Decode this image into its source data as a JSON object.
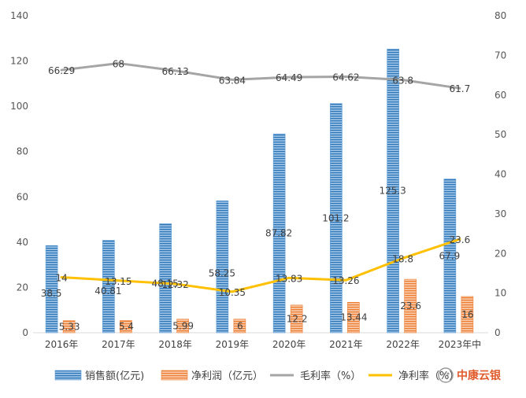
{
  "chart_data": {
    "type": "bar",
    "categories": [
      "2016年",
      "2017年",
      "2018年",
      "2019年",
      "2020年",
      "2021年",
      "2022年",
      "2023年中"
    ],
    "series": [
      {
        "name": "销售额(亿元)",
        "type": "bar",
        "axis": "left",
        "color": "#5b9bd5",
        "values": [
          38.5,
          40.81,
          48.15,
          58.25,
          87.82,
          101.2,
          125.3,
          67.9
        ],
        "labels": [
          "38.5",
          "40.81",
          "48.15",
          "58.25",
          "87.82",
          "101.2",
          "125.3",
          "67.9"
        ]
      },
      {
        "name": "净利润（亿元）",
        "type": "bar",
        "axis": "left",
        "color": "#ed7d31",
        "values": [
          5.33,
          5.4,
          5.99,
          6,
          12.2,
          13.44,
          23.6,
          16
        ],
        "labels": [
          "5.33",
          "5.4",
          "5.99",
          "6",
          "12.2",
          "13.44",
          "23.6",
          "16"
        ]
      },
      {
        "name": "毛利率（%）",
        "type": "line",
        "axis": "right",
        "color": "#a5a5a5",
        "values": [
          66.29,
          68,
          66.13,
          63.84,
          64.49,
          64.62,
          63.8,
          61.7
        ],
        "labels": [
          "66.29",
          "68",
          "66.13",
          "63.84",
          "64.49",
          "64.62",
          "63.8",
          "61.7"
        ]
      },
      {
        "name": "净利率（%）",
        "type": "line",
        "axis": "right",
        "color": "#ffc000",
        "values": [
          14,
          13.15,
          12.32,
          10.35,
          13.83,
          13.26,
          18.8,
          23.6
        ],
        "labels": [
          "14",
          "13.15",
          "12.32",
          "10.35",
          "13.83",
          "13.26",
          "18.8",
          "23.6"
        ]
      }
    ],
    "y_left": {
      "min": 0,
      "max": 140,
      "ticks": [
        "0",
        "20",
        "40",
        "60",
        "80",
        "100",
        "120",
        "140"
      ]
    },
    "y_right": {
      "min": 0,
      "max": 80,
      "ticks": [
        "0",
        "10",
        "20",
        "30",
        "40",
        "50",
        "60",
        "70",
        "80"
      ]
    },
    "grid": false,
    "legend_position": "bottom"
  },
  "watermark": {
    "text": "中康云银"
  }
}
